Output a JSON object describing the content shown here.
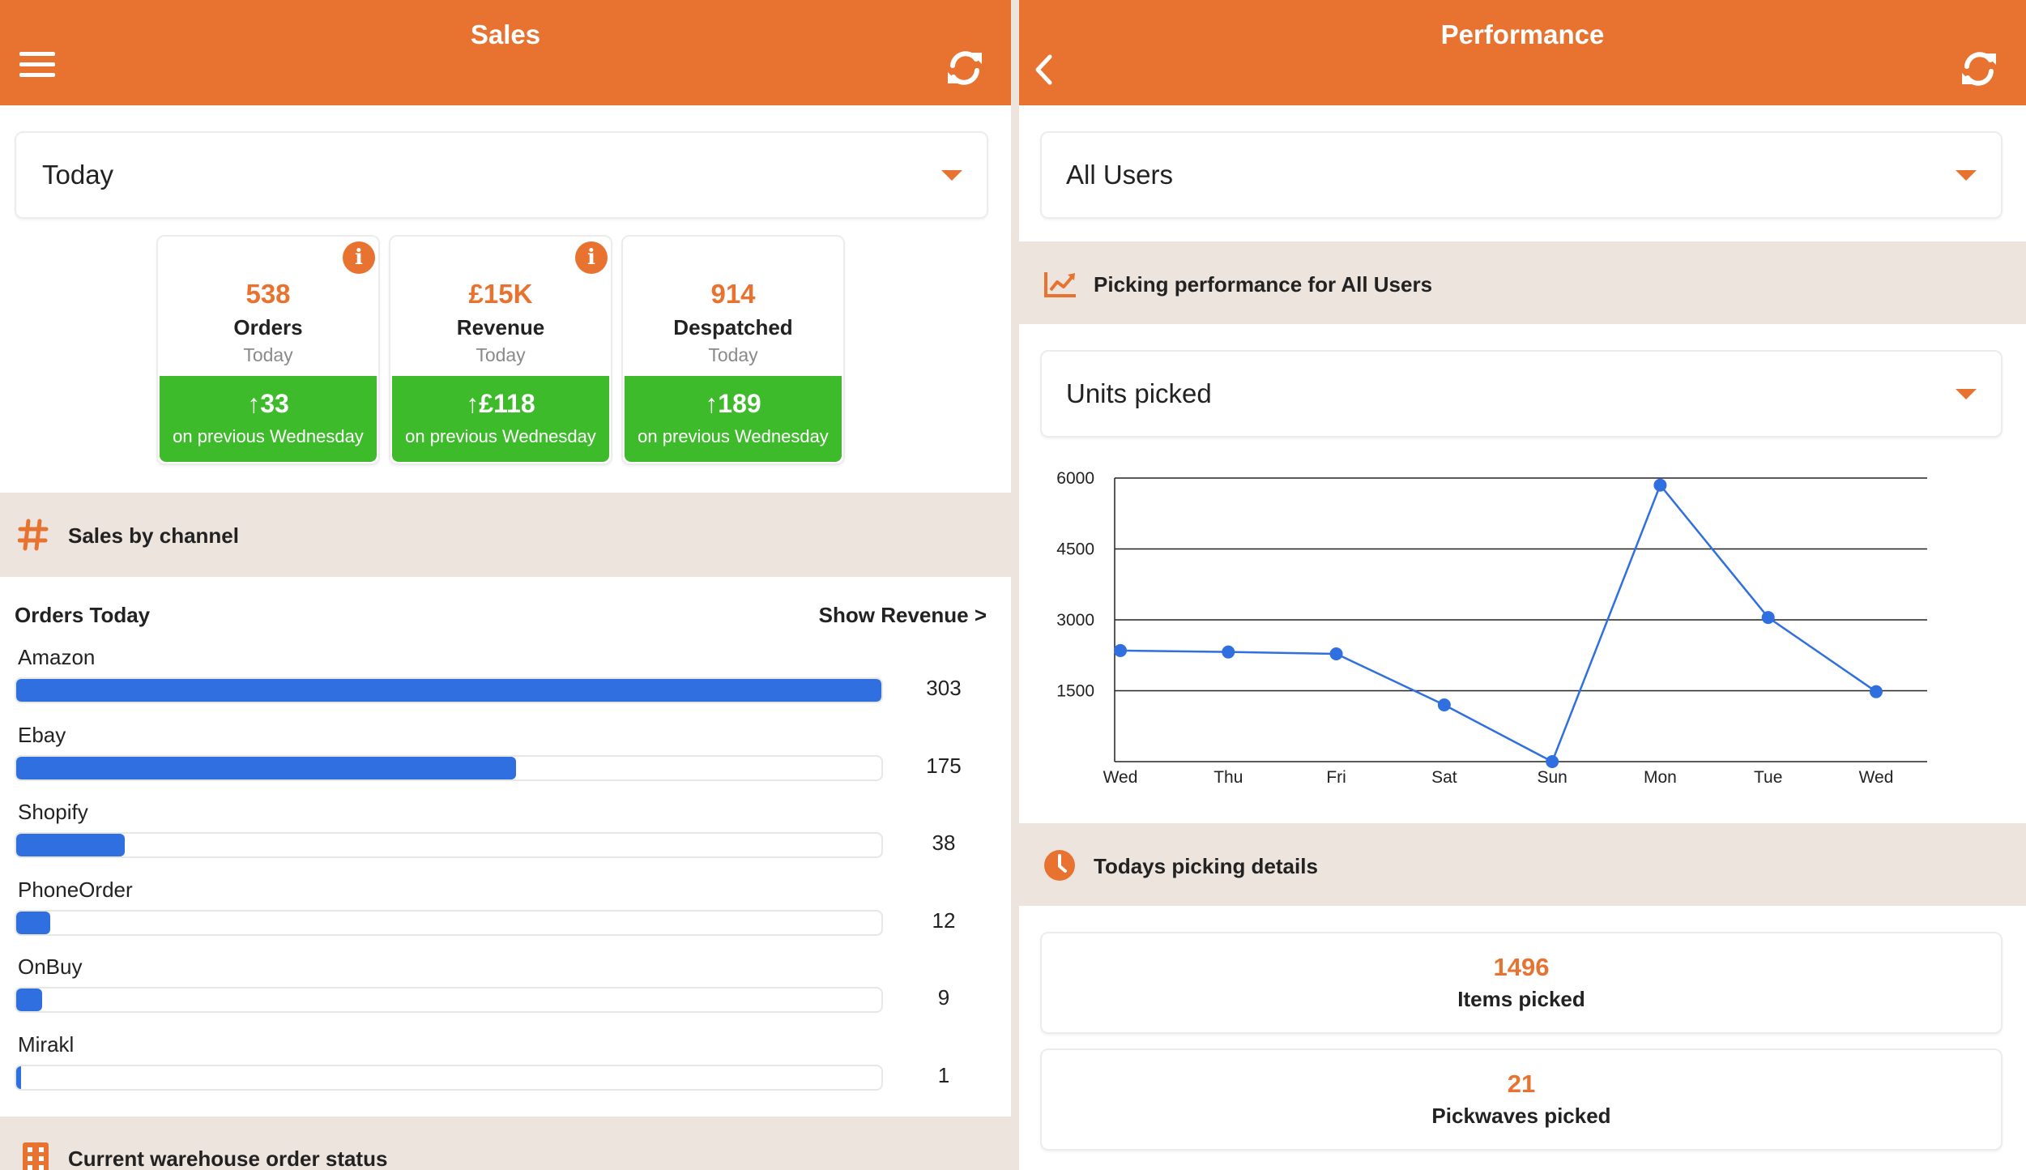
{
  "sales": {
    "title": "Sales",
    "period": {
      "selected": "Today"
    },
    "stats": [
      {
        "value": "538",
        "label": "Orders",
        "sub": "Today",
        "delta": "33",
        "delta_note": "on previous Wednesday",
        "has_info": true
      },
      {
        "value": "£15K",
        "label": "Revenue",
        "sub": "Today",
        "delta": "£118",
        "delta_note": "on previous Wednesday",
        "has_info": true
      },
      {
        "value": "914",
        "label": "Despatched",
        "sub": "Today",
        "delta": "189",
        "delta_note": "on previous Wednesday",
        "has_info": false
      }
    ],
    "info_glyph": "i",
    "channel_section": {
      "title": "Sales by channel"
    },
    "orders_header": "Orders Today",
    "show_revenue_link": "Show Revenue >",
    "channels": [
      {
        "name": "Amazon",
        "value": 303
      },
      {
        "name": "Ebay",
        "value": 175
      },
      {
        "name": "Shopify",
        "value": 38
      },
      {
        "name": "PhoneOrder",
        "value": 12
      },
      {
        "name": "OnBuy",
        "value": 9
      },
      {
        "name": "Mirakl",
        "value": 1
      }
    ],
    "warehouse_section": {
      "title": "Current warehouse order status"
    }
  },
  "performance": {
    "title": "Performance",
    "user_filter": {
      "selected": "All Users"
    },
    "picking_section": {
      "title": "Picking performance for All Users"
    },
    "metric": {
      "selected": "Units picked"
    },
    "details_section": {
      "title": "Todays picking details"
    },
    "details": [
      {
        "value": "1496",
        "label": "Items picked"
      },
      {
        "value": "21",
        "label": "Pickwaves picked"
      }
    ]
  },
  "chart_data": {
    "type": "line",
    "x": [
      "Wed",
      "Thu",
      "Fri",
      "Sat",
      "Sun",
      "Mon",
      "Tue",
      "Wed"
    ],
    "series": [
      {
        "values": [
          2350,
          2320,
          2280,
          1200,
          0,
          5850,
          3050,
          1480
        ]
      }
    ],
    "yticks": [
      1500,
      3000,
      4500,
      6000
    ],
    "ylim": [
      0,
      6000
    ],
    "grid": true,
    "line_color": "#2f6fe0"
  },
  "colors": {
    "accent": "#e87330",
    "positive": "#3dbb2b",
    "bar": "#2f6fe0",
    "background": "#ede4de"
  },
  "icons": {
    "menu": "menu-icon",
    "refresh": "refresh-icon",
    "back": "chevron-left-icon",
    "channel": "hash-icon",
    "warehouse": "building-icon",
    "picking": "chart-line-icon",
    "details": "clock-icon",
    "up_arrow": "arrow-up-icon"
  }
}
